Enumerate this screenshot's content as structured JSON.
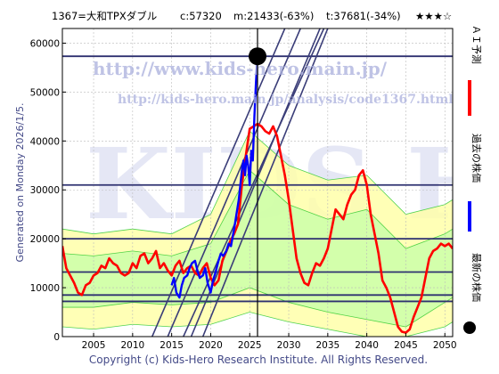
{
  "header": {
    "code_name": "1367=大和TPXダブル",
    "close": "c:57320",
    "min": "m:21433(-63%)",
    "target": "t:37681(-34%)",
    "stars": "★★★☆"
  },
  "side_label": "Generated on Monday 2026/1/5.",
  "copyright": "Copyright (c) Kids-Hero Research Institute. All Rights Reserved.",
  "watermark": {
    "url": "http://www.kids-hero.main.jp/",
    "page": "http://kids-hero.main.jp/analysis/code1367.html",
    "logo": "KIDS HERO"
  },
  "legend": [
    {
      "label": "ＡＩ予測",
      "color": "#ff0000"
    },
    {
      "label": "過去の株価",
      "color": "#0000ff"
    },
    {
      "label": "最新の株価",
      "color": "#000000"
    }
  ],
  "colors": {
    "prediction": "#ff0000",
    "history": "#0000ff",
    "band_green": "#33cc33",
    "band_light": "#ccffaa",
    "band_yellow": "#ffffaa",
    "channel": "#3a3d78",
    "level": "#2e3170"
  },
  "chart_data": {
    "type": "line",
    "title": "",
    "xlabel": "",
    "ylabel": "",
    "xlim": [
      2001,
      2051
    ],
    "ylim": [
      0,
      63000
    ],
    "x_ticks": [
      2005,
      2010,
      2015,
      2020,
      2025,
      2030,
      2035,
      2040,
      2045,
      2050
    ],
    "y_ticks": [
      0,
      10000,
      20000,
      30000,
      40000,
      50000,
      60000
    ],
    "grid": true,
    "latest_point": {
      "x": 2026.0,
      "y": 57320
    },
    "current_year": 2026.0,
    "horizontal_levels": [
      57320,
      31000,
      20000,
      13200,
      8500,
      7200
    ],
    "trend_channels": [
      {
        "from": [
          2012.5,
          0
        ],
        "to": [
          2029.5,
          63000
        ]
      },
      {
        "from": [
          2014.5,
          0
        ],
        "to": [
          2031.5,
          63000
        ]
      },
      {
        "from": [
          2016.5,
          0
        ],
        "to": [
          2034.5,
          63000
        ]
      },
      {
        "from": [
          2017.5,
          0
        ],
        "to": [
          2034.0,
          63000
        ]
      },
      {
        "from": [
          2019.0,
          0
        ],
        "to": [
          2035.0,
          63000
        ]
      }
    ],
    "series": [
      {
        "name": "ＡＩ予測",
        "x": [
          2001,
          2001.5,
          2002,
          2002.5,
          2003,
          2003.5,
          2004,
          2004.5,
          2005,
          2005.5,
          2006,
          2006.5,
          2007,
          2007.5,
          2008,
          2008.5,
          2009,
          2009.5,
          2010,
          2010.5,
          2011,
          2011.5,
          2012,
          2012.5,
          2013,
          2013.5,
          2014,
          2014.5,
          2015,
          2015.5,
          2016,
          2016.5,
          2017,
          2017.5,
          2018,
          2018.5,
          2019,
          2019.5,
          2020,
          2020.5,
          2021,
          2021.5,
          2022,
          2022.5,
          2023,
          2023.5,
          2024,
          2024.5,
          2025,
          2025.5,
          2026,
          2026.5,
          2027,
          2027.5,
          2028,
          2028.5,
          2029,
          2029.5,
          2030,
          2030.5,
          2031,
          2031.5,
          2032,
          2032.5,
          2033,
          2033.5,
          2034,
          2034.5,
          2035,
          2035.5,
          2036,
          2036.5,
          2037,
          2037.5,
          2038,
          2038.5,
          2039,
          2039.5,
          2040,
          2040.5,
          2041,
          2041.5,
          2042,
          2042.5,
          2043,
          2043.5,
          2044,
          2044.5,
          2045,
          2045.5,
          2046,
          2046.5,
          2047,
          2047.5,
          2048,
          2048.5,
          2049,
          2049.5,
          2050,
          2050.5,
          2051
        ],
        "y": [
          18500,
          14000,
          12500,
          11000,
          9000,
          8500,
          10500,
          11000,
          12500,
          13000,
          14500,
          14000,
          16000,
          15000,
          14500,
          13000,
          12500,
          13000,
          15000,
          14000,
          16500,
          17000,
          15000,
          16000,
          17500,
          14000,
          15000,
          13500,
          12500,
          14500,
          15500,
          13000,
          14000,
          14500,
          13000,
          12500,
          14000,
          15000,
          12000,
          10500,
          11500,
          15500,
          17500,
          19500,
          21000,
          23000,
          31000,
          37000,
          42500,
          43000,
          43500,
          43000,
          42000,
          41500,
          43000,
          41000,
          37000,
          33000,
          28000,
          22000,
          16000,
          13000,
          11000,
          10500,
          13000,
          15000,
          14500,
          16000,
          18000,
          22000,
          26000,
          25000,
          24000,
          27000,
          29000,
          30000,
          33000,
          34000,
          31000,
          25000,
          21000,
          17000,
          11500,
          10000,
          8000,
          5000,
          2000,
          1000,
          800,
          1500,
          4000,
          6000,
          8000,
          12000,
          16000,
          17500,
          18000,
          19000,
          18500,
          19000,
          18000
        ]
      },
      {
        "name": "過去の株価",
        "x": [
          2015.0,
          2015.3,
          2015.6,
          2016.0,
          2016.3,
          2016.6,
          2017.0,
          2017.3,
          2017.6,
          2018.0,
          2018.3,
          2018.6,
          2019.0,
          2019.3,
          2019.6,
          2020.0,
          2020.3,
          2020.6,
          2021.0,
          2021.3,
          2021.6,
          2022.0,
          2022.3,
          2022.6,
          2023.0,
          2023.3,
          2023.6,
          2024.0,
          2024.2,
          2024.4,
          2024.6,
          2024.8,
          2025.0,
          2025.2,
          2025.4,
          2025.6,
          2025.8,
          2026.0
        ],
        "y": [
          10500,
          12000,
          9000,
          8000,
          10500,
          12000,
          12500,
          14000,
          15000,
          15500,
          13500,
          12000,
          12500,
          14000,
          11000,
          9000,
          11500,
          13000,
          15500,
          17000,
          16500,
          17500,
          19000,
          18500,
          22000,
          25000,
          28000,
          34000,
          36000,
          33000,
          37000,
          35000,
          31000,
          38000,
          36000,
          45000,
          52000,
          57320
        ]
      }
    ],
    "bands": [
      {
        "name": "outer",
        "x": [
          2001,
          2005,
          2010,
          2015,
          2020,
          2025,
          2030,
          2035,
          2040,
          2045,
          2050,
          2051
        ],
        "upper": [
          22000,
          21000,
          22000,
          21000,
          25000,
          42000,
          35000,
          32000,
          33000,
          25000,
          27000,
          28000
        ],
        "lower": [
          2000,
          1500,
          2500,
          2000,
          2500,
          5000,
          3000,
          1500,
          0,
          0,
          2000,
          3000
        ]
      },
      {
        "name": "inner",
        "x": [
          2001,
          2005,
          2010,
          2015,
          2020,
          2025,
          2030,
          2035,
          2040,
          2045,
          2050,
          2051
        ],
        "upper": [
          17000,
          16500,
          17500,
          16500,
          19000,
          34000,
          27000,
          24000,
          26000,
          18000,
          21000,
          22000
        ],
        "lower": [
          6000,
          6000,
          7000,
          6500,
          7000,
          10000,
          7000,
          5000,
          3500,
          2000,
          7000,
          8000
        ]
      }
    ]
  }
}
